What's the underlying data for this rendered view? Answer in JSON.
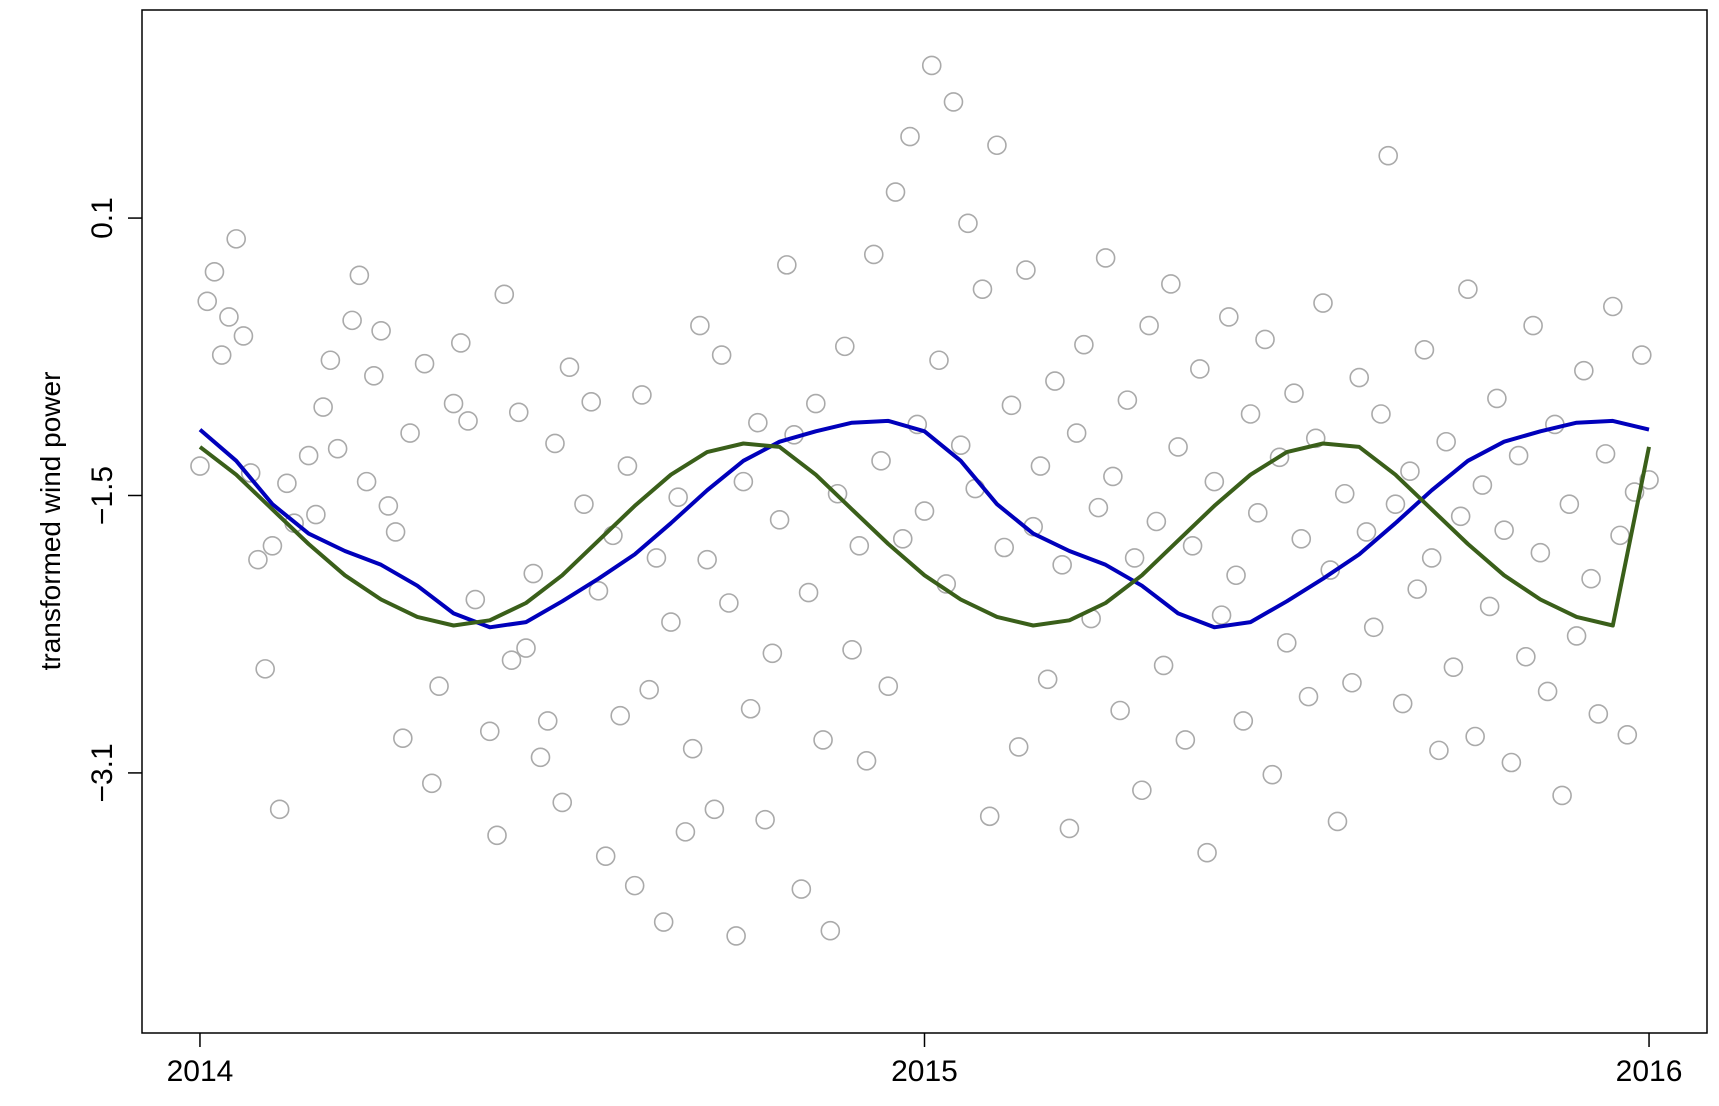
{
  "chart_data": {
    "type": "scatter",
    "ylabel": "transformed wind power",
    "xlabel": "",
    "title": "",
    "xlim": [
      2013.92,
      2016.08
    ],
    "ylim": [
      -4.6,
      1.3
    ],
    "x_ticks": [
      {
        "value": 2014,
        "label": "2014"
      },
      {
        "value": 2015,
        "label": "2015"
      },
      {
        "value": 2016,
        "label": "2016"
      }
    ],
    "y_ticks": [
      {
        "value": -3.1,
        "label": "−3.1"
      },
      {
        "value": -1.5,
        "label": "−1.5"
      },
      {
        "value": 0.1,
        "label": "0.1"
      }
    ],
    "grid": false,
    "legend": "none",
    "scatter": {
      "color": "#aaaaaa",
      "points": [
        [
          2014.0,
          -1.33
        ],
        [
          2014.01,
          -0.38
        ],
        [
          2014.02,
          -0.21
        ],
        [
          2014.03,
          -0.69
        ],
        [
          2014.04,
          -0.47
        ],
        [
          2014.05,
          -0.02
        ],
        [
          2014.06,
          -0.58
        ],
        [
          2014.07,
          -1.37
        ],
        [
          2014.08,
          -1.87
        ],
        [
          2014.09,
          -2.5
        ],
        [
          2014.1,
          -1.79
        ],
        [
          2014.11,
          -3.31
        ],
        [
          2014.12,
          -1.43
        ],
        [
          2014.13,
          -1.66
        ],
        [
          2014.15,
          -1.27
        ],
        [
          2014.16,
          -1.61
        ],
        [
          2014.17,
          -0.99
        ],
        [
          2014.18,
          -0.72
        ],
        [
          2014.19,
          -1.23
        ],
        [
          2014.21,
          -0.49
        ],
        [
          2014.22,
          -0.23
        ],
        [
          2014.23,
          -1.42
        ],
        [
          2014.24,
          -0.81
        ],
        [
          2014.25,
          -0.55
        ],
        [
          2014.26,
          -1.56
        ],
        [
          2014.27,
          -1.71
        ],
        [
          2014.28,
          -2.9
        ],
        [
          2014.29,
          -1.14
        ],
        [
          2014.31,
          -0.74
        ],
        [
          2014.32,
          -3.16
        ],
        [
          2014.33,
          -2.6
        ],
        [
          2014.35,
          -0.97
        ],
        [
          2014.36,
          -0.62
        ],
        [
          2014.37,
          -1.07
        ],
        [
          2014.38,
          -2.1
        ],
        [
          2014.4,
          -2.86
        ],
        [
          2014.41,
          -3.46
        ],
        [
          2014.42,
          -0.34
        ],
        [
          2014.43,
          -2.45
        ],
        [
          2014.44,
          -1.02
        ],
        [
          2014.45,
          -2.38
        ],
        [
          2014.46,
          -1.95
        ],
        [
          2014.47,
          -3.01
        ],
        [
          2014.48,
          -2.8
        ],
        [
          2014.49,
          -1.2
        ],
        [
          2014.5,
          -3.27
        ],
        [
          2014.51,
          -0.76
        ],
        [
          2014.53,
          -1.55
        ],
        [
          2014.54,
          -0.96
        ],
        [
          2014.55,
          -2.05
        ],
        [
          2014.56,
          -3.58
        ],
        [
          2014.57,
          -1.73
        ],
        [
          2014.58,
          -2.77
        ],
        [
          2014.59,
          -1.33
        ],
        [
          2014.6,
          -3.75
        ],
        [
          2014.61,
          -0.92
        ],
        [
          2014.62,
          -2.62
        ],
        [
          2014.63,
          -1.86
        ],
        [
          2014.64,
          -3.96
        ],
        [
          2014.65,
          -2.23
        ],
        [
          2014.66,
          -1.51
        ],
        [
          2014.67,
          -3.44
        ],
        [
          2014.68,
          -2.96
        ],
        [
          2014.69,
          -0.52
        ],
        [
          2014.7,
          -1.87
        ],
        [
          2014.71,
          -3.31
        ],
        [
          2014.72,
          -0.69
        ],
        [
          2014.73,
          -2.12
        ],
        [
          2014.74,
          -4.04
        ],
        [
          2014.75,
          -1.42
        ],
        [
          2014.76,
          -2.73
        ],
        [
          2014.77,
          -1.08
        ],
        [
          2014.78,
          -3.37
        ],
        [
          2014.79,
          -2.41
        ],
        [
          2014.8,
          -1.64
        ],
        [
          2014.81,
          -0.17
        ],
        [
          2014.82,
          -1.15
        ],
        [
          2014.83,
          -3.77
        ],
        [
          2014.84,
          -2.06
        ],
        [
          2014.85,
          -0.97
        ],
        [
          2014.86,
          -2.91
        ],
        [
          2014.87,
          -4.01
        ],
        [
          2014.88,
          -1.49
        ],
        [
          2014.89,
          -0.64
        ],
        [
          2014.9,
          -2.39
        ],
        [
          2014.91,
          -1.79
        ],
        [
          2014.92,
          -3.03
        ],
        [
          2014.93,
          -0.11
        ],
        [
          2014.94,
          -1.3
        ],
        [
          2014.95,
          -2.6
        ],
        [
          2014.96,
          0.25
        ],
        [
          2014.97,
          -1.75
        ],
        [
          2014.98,
          0.57
        ],
        [
          2014.99,
          -1.09
        ],
        [
          2015.0,
          -1.59
        ],
        [
          2015.01,
          0.98
        ],
        [
          2015.02,
          -0.72
        ],
        [
          2015.03,
          -2.01
        ],
        [
          2015.04,
          0.77
        ],
        [
          2015.05,
          -1.21
        ],
        [
          2015.06,
          0.07
        ],
        [
          2015.07,
          -1.46
        ],
        [
          2015.08,
          -0.31
        ],
        [
          2015.09,
          -3.35
        ],
        [
          2015.1,
          0.52
        ],
        [
          2015.11,
          -1.8
        ],
        [
          2015.12,
          -0.98
        ],
        [
          2015.13,
          -2.95
        ],
        [
          2015.14,
          -0.2
        ],
        [
          2015.15,
          -1.68
        ],
        [
          2015.16,
          -1.33
        ],
        [
          2015.17,
          -2.56
        ],
        [
          2015.18,
          -0.84
        ],
        [
          2015.19,
          -1.9
        ],
        [
          2015.2,
          -3.42
        ],
        [
          2015.21,
          -1.14
        ],
        [
          2015.22,
          -0.63
        ],
        [
          2015.23,
          -2.21
        ],
        [
          2015.24,
          -1.57
        ],
        [
          2015.25,
          -0.13
        ],
        [
          2015.26,
          -1.39
        ],
        [
          2015.27,
          -2.74
        ],
        [
          2015.28,
          -0.95
        ],
        [
          2015.29,
          -1.86
        ],
        [
          2015.3,
          -3.2
        ],
        [
          2015.31,
          -0.52
        ],
        [
          2015.32,
          -1.65
        ],
        [
          2015.33,
          -2.48
        ],
        [
          2015.34,
          -0.28
        ],
        [
          2015.35,
          -1.22
        ],
        [
          2015.36,
          -2.91
        ],
        [
          2015.37,
          -1.79
        ],
        [
          2015.38,
          -0.77
        ],
        [
          2015.39,
          -3.56
        ],
        [
          2015.4,
          -1.42
        ],
        [
          2015.41,
          -2.19
        ],
        [
          2015.42,
          -0.47
        ],
        [
          2015.43,
          -1.96
        ],
        [
          2015.44,
          -2.8
        ],
        [
          2015.45,
          -1.03
        ],
        [
          2015.46,
          -1.6
        ],
        [
          2015.47,
          -0.6
        ],
        [
          2015.48,
          -3.11
        ],
        [
          2015.49,
          -1.28
        ],
        [
          2015.5,
          -2.35
        ],
        [
          2015.51,
          -0.91
        ],
        [
          2015.52,
          -1.75
        ],
        [
          2015.53,
          -2.66
        ],
        [
          2015.54,
          -1.17
        ],
        [
          2015.55,
          -0.39
        ],
        [
          2015.56,
          -1.93
        ],
        [
          2015.57,
          -3.38
        ],
        [
          2015.58,
          -1.49
        ],
        [
          2015.59,
          -2.58
        ],
        [
          2015.6,
          -0.82
        ],
        [
          2015.61,
          -1.71
        ],
        [
          2015.62,
          -2.26
        ],
        [
          2015.63,
          -1.03
        ],
        [
          2015.64,
          0.46
        ],
        [
          2015.65,
          -1.55
        ],
        [
          2015.66,
          -2.7
        ],
        [
          2015.67,
          -1.36
        ],
        [
          2015.68,
          -2.04
        ],
        [
          2015.69,
          -0.66
        ],
        [
          2015.7,
          -1.86
        ],
        [
          2015.71,
          -2.97
        ],
        [
          2015.72,
          -1.19
        ],
        [
          2015.73,
          -2.49
        ],
        [
          2015.74,
          -1.62
        ],
        [
          2015.75,
          -0.31
        ],
        [
          2015.76,
          -2.89
        ],
        [
          2015.77,
          -1.44
        ],
        [
          2015.78,
          -2.14
        ],
        [
          2015.79,
          -0.94
        ],
        [
          2015.8,
          -1.7
        ],
        [
          2015.81,
          -3.04
        ],
        [
          2015.82,
          -1.27
        ],
        [
          2015.83,
          -2.43
        ],
        [
          2015.84,
          -0.52
        ],
        [
          2015.85,
          -1.83
        ],
        [
          2015.86,
          -2.63
        ],
        [
          2015.87,
          -1.09
        ],
        [
          2015.88,
          -3.23
        ],
        [
          2015.89,
          -1.55
        ],
        [
          2015.9,
          -2.31
        ],
        [
          2015.91,
          -0.78
        ],
        [
          2015.92,
          -1.98
        ],
        [
          2015.93,
          -2.76
        ],
        [
          2015.94,
          -1.26
        ],
        [
          2015.95,
          -0.41
        ],
        [
          2015.96,
          -1.73
        ],
        [
          2015.97,
          -2.88
        ],
        [
          2015.98,
          -1.48
        ],
        [
          2015.99,
          -0.69
        ],
        [
          2016.0,
          -1.41
        ]
      ]
    },
    "series": [
      {
        "color": "#0000bb",
        "x": [
          2014.0,
          2014.05,
          2014.1,
          2014.15,
          2014.2,
          2014.25,
          2014.3,
          2014.35,
          2014.4,
          2014.45,
          2014.5,
          2014.55,
          2014.6,
          2014.65,
          2014.7,
          2014.75,
          2014.8,
          2014.85,
          2014.9,
          2014.95,
          2015.0,
          2015.05,
          2015.1,
          2015.15,
          2015.2,
          2015.25,
          2015.3,
          2015.35,
          2015.4,
          2015.45,
          2015.5,
          2015.55,
          2015.6,
          2015.65,
          2015.7,
          2015.75,
          2015.8,
          2015.85,
          2015.9,
          2015.95,
          2016.0
        ],
        "y": [
          -1.12,
          -1.3,
          -1.55,
          -1.72,
          -1.82,
          -1.9,
          -2.02,
          -2.18,
          -2.26,
          -2.23,
          -2.11,
          -1.98,
          -1.84,
          -1.66,
          -1.47,
          -1.3,
          -1.19,
          -1.13,
          -1.08,
          -1.07,
          -1.13,
          -1.3,
          -1.55,
          -1.72,
          -1.82,
          -1.9,
          -2.02,
          -2.18,
          -2.26,
          -2.23,
          -2.11,
          -1.98,
          -1.84,
          -1.66,
          -1.47,
          -1.3,
          -1.19,
          -1.13,
          -1.08,
          -1.07,
          -1.12
        ]
      },
      {
        "color": "#3a5f1a",
        "x": [
          2014.0,
          2014.05,
          2014.1,
          2014.15,
          2014.2,
          2014.25,
          2014.3,
          2014.35,
          2014.4,
          2014.45,
          2014.5,
          2014.55,
          2014.6,
          2014.65,
          2014.7,
          2014.75,
          2014.8,
          2014.85,
          2014.9,
          2014.95,
          2015.0,
          2015.05,
          2015.1,
          2015.15,
          2015.2,
          2015.25,
          2015.3,
          2015.35,
          2015.4,
          2015.45,
          2015.5,
          2015.55,
          2015.6,
          2015.65,
          2015.7,
          2015.75,
          2015.8,
          2015.85,
          2015.9,
          2015.95,
          2016.0
        ],
        "y": [
          -1.22,
          -1.38,
          -1.58,
          -1.78,
          -1.96,
          -2.1,
          -2.2,
          -2.25,
          -2.22,
          -2.12,
          -1.96,
          -1.76,
          -1.56,
          -1.38,
          -1.25,
          -1.2,
          -1.22,
          -1.38,
          -1.58,
          -1.78,
          -1.96,
          -2.1,
          -2.2,
          -2.25,
          -2.22,
          -2.12,
          -1.96,
          -1.76,
          -1.56,
          -1.38,
          -1.25,
          -1.2,
          -1.22,
          -1.38,
          -1.58,
          -1.78,
          -1.96,
          -2.1,
          -2.2,
          -2.25,
          -1.22
        ]
      }
    ]
  }
}
